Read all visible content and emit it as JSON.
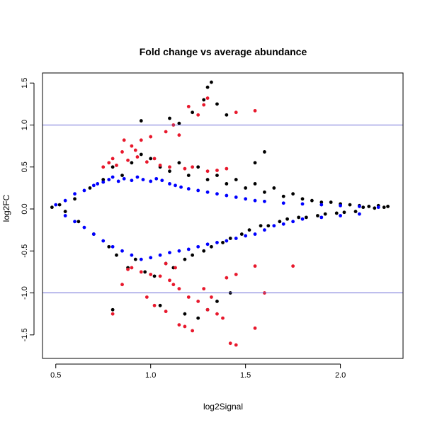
{
  "chart_data": {
    "type": "scatter",
    "title": "Fold change vs average abundance",
    "xlabel": "log2Signal",
    "ylabel": "log2FC",
    "xlim": [
      0.43,
      2.33
    ],
    "ylim": [
      -1.78,
      1.62
    ],
    "x_ticks": [
      "0.5",
      "1.0",
      "1.5",
      "2.0"
    ],
    "x_tick_values": [
      0.5,
      1.0,
      1.5,
      2.0
    ],
    "y_ticks": [
      "-1.5",
      "-1.0",
      "-0.5",
      "0.0",
      "0.5",
      "1.0",
      "1.5"
    ],
    "y_tick_values": [
      -1.5,
      -1.0,
      -0.5,
      0.0,
      0.5,
      1.0,
      1.5
    ],
    "grid": false,
    "reference_lines": [
      {
        "axis": "y",
        "value": 1.0,
        "color": "#6b6bd6"
      },
      {
        "axis": "y",
        "value": -1.0,
        "color": "#6b6bd6"
      }
    ],
    "series": [
      {
        "color": "#000000",
        "points": [
          [
            0.48,
            0.02
          ],
          [
            0.52,
            0.05
          ],
          [
            0.55,
            -0.03
          ],
          [
            0.6,
            0.12
          ],
          [
            0.62,
            -0.15
          ],
          [
            0.68,
            0.25
          ],
          [
            0.7,
            -0.3
          ],
          [
            0.75,
            0.35
          ],
          [
            0.78,
            -0.45
          ],
          [
            0.8,
            0.5
          ],
          [
            0.82,
            -0.55
          ],
          [
            0.85,
            0.4
          ],
          [
            0.88,
            -0.7
          ],
          [
            0.9,
            0.55
          ],
          [
            0.92,
            -0.6
          ],
          [
            0.95,
            0.65
          ],
          [
            0.97,
            -0.75
          ],
          [
            1.0,
            0.6
          ],
          [
            1.02,
            -0.8
          ],
          [
            1.05,
            0.5
          ],
          [
            1.08,
            -0.65
          ],
          [
            1.1,
            0.45
          ],
          [
            1.12,
            -0.7
          ],
          [
            1.15,
            0.55
          ],
          [
            1.18,
            -0.6
          ],
          [
            1.2,
            0.4
          ],
          [
            1.22,
            -0.55
          ],
          [
            1.25,
            0.5
          ],
          [
            1.28,
            -0.5
          ],
          [
            1.3,
            0.35
          ],
          [
            1.32,
            -0.45
          ],
          [
            1.35,
            0.4
          ],
          [
            1.38,
            -0.4
          ],
          [
            1.4,
            0.3
          ],
          [
            1.42,
            -0.35
          ],
          [
            1.45,
            0.35
          ],
          [
            1.48,
            -0.3
          ],
          [
            1.5,
            0.25
          ],
          [
            1.52,
            -0.25
          ],
          [
            1.55,
            0.3
          ],
          [
            1.58,
            -0.2
          ],
          [
            1.6,
            0.2
          ],
          [
            1.62,
            -0.2
          ],
          [
            1.65,
            0.25
          ],
          [
            1.68,
            -0.15
          ],
          [
            1.7,
            0.15
          ],
          [
            1.72,
            -0.12
          ],
          [
            1.75,
            0.18
          ],
          [
            1.78,
            -0.1
          ],
          [
            1.8,
            0.12
          ],
          [
            1.82,
            -0.1
          ],
          [
            1.85,
            0.1
          ],
          [
            1.88,
            -0.08
          ],
          [
            1.9,
            0.08
          ],
          [
            1.92,
            -0.06
          ],
          [
            1.95,
            0.08
          ],
          [
            1.98,
            -0.05
          ],
          [
            2.0,
            0.06
          ],
          [
            2.02,
            -0.04
          ],
          [
            2.05,
            0.05
          ],
          [
            2.08,
            -0.03
          ],
          [
            2.1,
            0.04
          ],
          [
            2.12,
            0.02
          ],
          [
            2.15,
            0.03
          ],
          [
            2.18,
            0.01
          ],
          [
            2.2,
            0.04
          ],
          [
            2.23,
            0.02
          ],
          [
            2.25,
            0.03
          ],
          [
            1.32,
            1.51
          ],
          [
            1.3,
            1.45
          ],
          [
            1.35,
            1.25
          ],
          [
            1.28,
            1.3
          ],
          [
            1.4,
            1.12
          ],
          [
            1.1,
            1.08
          ],
          [
            1.15,
            1.02
          ],
          [
            0.95,
            1.05
          ],
          [
            1.22,
            1.15
          ],
          [
            1.6,
            0.68
          ],
          [
            1.55,
            0.55
          ],
          [
            1.25,
            -1.3
          ],
          [
            1.35,
            -1.1
          ],
          [
            1.3,
            -1.2
          ],
          [
            1.18,
            -1.25
          ],
          [
            0.8,
            -1.2
          ],
          [
            1.05,
            -1.15
          ],
          [
            1.42,
            -1.0
          ]
        ]
      },
      {
        "color": "#0000ff",
        "points": [
          [
            0.5,
            0.05
          ],
          [
            0.55,
            0.1
          ],
          [
            0.6,
            0.18
          ],
          [
            0.65,
            0.22
          ],
          [
            0.7,
            0.28
          ],
          [
            0.72,
            0.3
          ],
          [
            0.75,
            0.32
          ],
          [
            0.78,
            0.35
          ],
          [
            0.8,
            0.38
          ],
          [
            0.83,
            0.33
          ],
          [
            0.86,
            0.36
          ],
          [
            0.9,
            0.34
          ],
          [
            0.93,
            0.38
          ],
          [
            0.96,
            0.35
          ],
          [
            1.0,
            0.33
          ],
          [
            1.03,
            0.36
          ],
          [
            1.06,
            0.34
          ],
          [
            1.1,
            0.3
          ],
          [
            1.13,
            0.28
          ],
          [
            1.16,
            0.26
          ],
          [
            1.2,
            0.24
          ],
          [
            1.25,
            0.22
          ],
          [
            1.3,
            0.2
          ],
          [
            1.35,
            0.18
          ],
          [
            1.4,
            0.16
          ],
          [
            1.45,
            0.14
          ],
          [
            1.5,
            0.12
          ],
          [
            1.55,
            0.1
          ],
          [
            1.6,
            0.09
          ],
          [
            1.7,
            0.07
          ],
          [
            1.8,
            0.06
          ],
          [
            1.9,
            0.05
          ],
          [
            2.0,
            0.04
          ],
          [
            2.1,
            0.03
          ],
          [
            2.2,
            0.02
          ],
          [
            0.55,
            -0.08
          ],
          [
            0.6,
            -0.15
          ],
          [
            0.65,
            -0.22
          ],
          [
            0.7,
            -0.3
          ],
          [
            0.75,
            -0.38
          ],
          [
            0.8,
            -0.45
          ],
          [
            0.85,
            -0.5
          ],
          [
            0.9,
            -0.55
          ],
          [
            0.95,
            -0.6
          ],
          [
            1.0,
            -0.58
          ],
          [
            1.05,
            -0.55
          ],
          [
            1.1,
            -0.52
          ],
          [
            1.15,
            -0.5
          ],
          [
            1.2,
            -0.48
          ],
          [
            1.25,
            -0.45
          ],
          [
            1.3,
            -0.42
          ],
          [
            1.35,
            -0.4
          ],
          [
            1.4,
            -0.38
          ],
          [
            1.45,
            -0.35
          ],
          [
            1.5,
            -0.32
          ],
          [
            1.55,
            -0.3
          ],
          [
            1.6,
            -0.25
          ],
          [
            1.65,
            -0.2
          ],
          [
            1.7,
            -0.18
          ],
          [
            1.75,
            -0.15
          ],
          [
            1.8,
            -0.12
          ],
          [
            1.9,
            -0.1
          ],
          [
            2.0,
            -0.08
          ],
          [
            2.1,
            -0.06
          ]
        ]
      },
      {
        "color": "#e8182c",
        "points": [
          [
            1.28,
            1.24
          ],
          [
            1.3,
            1.32
          ],
          [
            1.2,
            1.22
          ],
          [
            1.25,
            1.12
          ],
          [
            1.12,
            1.0
          ],
          [
            1.08,
            0.92
          ],
          [
            1.15,
            0.88
          ],
          [
            0.95,
            0.82
          ],
          [
            0.9,
            0.75
          ],
          [
            0.85,
            0.68
          ],
          [
            0.8,
            0.6
          ],
          [
            0.78,
            0.55
          ],
          [
            0.75,
            0.5
          ],
          [
            0.82,
            0.52
          ],
          [
            0.88,
            0.58
          ],
          [
            0.93,
            0.62
          ],
          [
            0.98,
            0.56
          ],
          [
            1.02,
            0.6
          ],
          [
            1.05,
            0.52
          ],
          [
            1.1,
            0.5
          ],
          [
            1.18,
            0.48
          ],
          [
            1.22,
            0.5
          ],
          [
            1.3,
            0.45
          ],
          [
            1.35,
            0.46
          ],
          [
            1.4,
            0.48
          ],
          [
            1.55,
            1.17
          ],
          [
            1.45,
            1.15
          ],
          [
            1.0,
            0.86
          ],
          [
            0.92,
            0.7
          ],
          [
            0.86,
            0.82
          ],
          [
            0.9,
            -0.7
          ],
          [
            0.95,
            -0.75
          ],
          [
            1.0,
            -0.78
          ],
          [
            1.05,
            -0.8
          ],
          [
            1.1,
            -0.85
          ],
          [
            1.12,
            -0.9
          ],
          [
            1.15,
            -0.95
          ],
          [
            1.2,
            -1.05
          ],
          [
            1.25,
            -1.1
          ],
          [
            1.3,
            -1.2
          ],
          [
            1.35,
            -1.25
          ],
          [
            1.38,
            -1.3
          ],
          [
            1.42,
            -1.6
          ],
          [
            1.45,
            -1.62
          ],
          [
            1.55,
            -1.42
          ],
          [
            1.18,
            -1.4
          ],
          [
            1.22,
            -1.45
          ],
          [
            1.15,
            -1.38
          ],
          [
            0.8,
            -1.25
          ],
          [
            0.85,
            -0.9
          ],
          [
            1.08,
            -0.65
          ],
          [
            1.13,
            -0.7
          ],
          [
            1.28,
            -0.95
          ],
          [
            1.32,
            -1.05
          ],
          [
            1.02,
            -1.15
          ],
          [
            1.08,
            -1.22
          ],
          [
            0.98,
            -1.05
          ],
          [
            1.4,
            -0.82
          ],
          [
            1.45,
            -0.78
          ],
          [
            1.6,
            -1.0
          ],
          [
            1.55,
            -0.68
          ],
          [
            1.75,
            -0.68
          ],
          [
            0.88,
            -0.72
          ]
        ]
      }
    ]
  }
}
